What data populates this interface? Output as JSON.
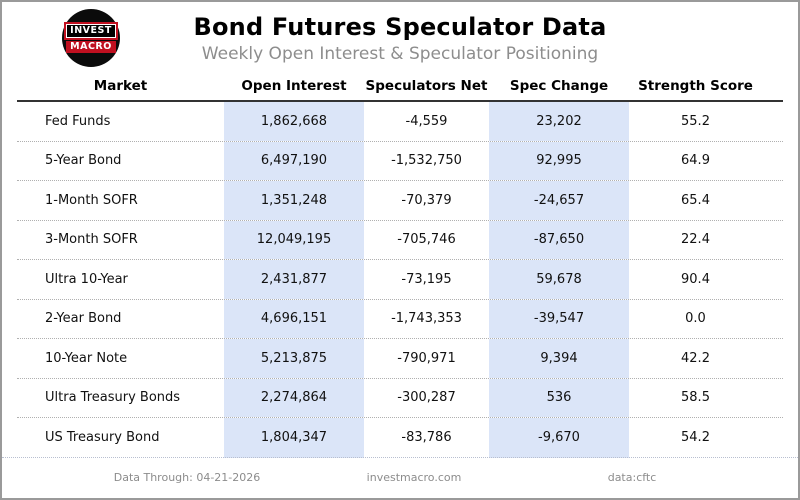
{
  "header": {
    "logo": {
      "line1": "INVEST",
      "line2": "MACRO"
    },
    "title": "Bond Futures Speculator Data",
    "subtitle": "Weekly Open Interest & Speculator Positioning"
  },
  "table": {
    "columns": [
      "Market",
      "Open Interest",
      "Speculators Net",
      "Spec Change",
      "Strength Score"
    ],
    "rows": [
      {
        "market": "Fed Funds",
        "open_interest": "1,862,668",
        "speculators_net": "-4,559",
        "spec_change": "23,202",
        "strength_score": "55.2"
      },
      {
        "market": "5-Year Bond",
        "open_interest": "6,497,190",
        "speculators_net": "-1,532,750",
        "spec_change": "92,995",
        "strength_score": "64.9"
      },
      {
        "market": "1-Month SOFR",
        "open_interest": "1,351,248",
        "speculators_net": "-70,379",
        "spec_change": "-24,657",
        "strength_score": "65.4"
      },
      {
        "market": "3-Month SOFR",
        "open_interest": "12,049,195",
        "speculators_net": "-705,746",
        "spec_change": "-87,650",
        "strength_score": "22.4"
      },
      {
        "market": "Ultra 10-Year",
        "open_interest": "2,431,877",
        "speculators_net": "-73,195",
        "spec_change": "59,678",
        "strength_score": "90.4"
      },
      {
        "market": "2-Year Bond",
        "open_interest": "4,696,151",
        "speculators_net": "-1,743,353",
        "spec_change": "-39,547",
        "strength_score": "0.0"
      },
      {
        "market": "10-Year Note",
        "open_interest": "5,213,875",
        "speculators_net": "-790,971",
        "spec_change": "9,394",
        "strength_score": "42.2"
      },
      {
        "market": "Ultra Treasury Bonds",
        "open_interest": "2,274,864",
        "speculators_net": "-300,287",
        "spec_change": "536",
        "strength_score": "58.5"
      },
      {
        "market": "US Treasury Bond",
        "open_interest": "1,804,347",
        "speculators_net": "-83,786",
        "spec_change": "-9,670",
        "strength_score": "54.2"
      }
    ]
  },
  "footer": {
    "data_through": "Data Through: 04-21-2026",
    "website": "investmacro.com",
    "source": "data:cftc"
  },
  "colors": {
    "column_highlight": "#dbe5f8",
    "logo_red": "#c01020",
    "subtitle_gray": "#8d8d8d"
  },
  "chart_data": {
    "type": "table",
    "title": "Bond Futures Speculator Data",
    "subtitle": "Weekly Open Interest & Speculator Positioning",
    "columns": [
      "Market",
      "Open Interest",
      "Speculators Net",
      "Spec Change",
      "Strength Score"
    ],
    "rows": [
      [
        "Fed Funds",
        1862668,
        -4559,
        23202,
        55.2
      ],
      [
        "5-Year Bond",
        6497190,
        -1532750,
        92995,
        64.9
      ],
      [
        "1-Month SOFR",
        1351248,
        -70379,
        -24657,
        65.4
      ],
      [
        "3-Month SOFR",
        12049195,
        -705746,
        -87650,
        22.4
      ],
      [
        "Ultra 10-Year",
        2431877,
        -73195,
        59678,
        90.4
      ],
      [
        "2-Year Bond",
        4696151,
        -1743353,
        -39547,
        0.0
      ],
      [
        "10-Year Note",
        5213875,
        -790971,
        9394,
        42.2
      ],
      [
        "Ultra Treasury Bonds",
        2274864,
        -300287,
        536,
        58.5
      ],
      [
        "US Treasury Bond",
        1804347,
        -83786,
        -9670,
        54.2
      ]
    ],
    "highlighted_columns": [
      "Open Interest",
      "Spec Change"
    ],
    "footer": [
      "Data Through: 04-21-2026",
      "investmacro.com",
      "data:cftc"
    ]
  }
}
